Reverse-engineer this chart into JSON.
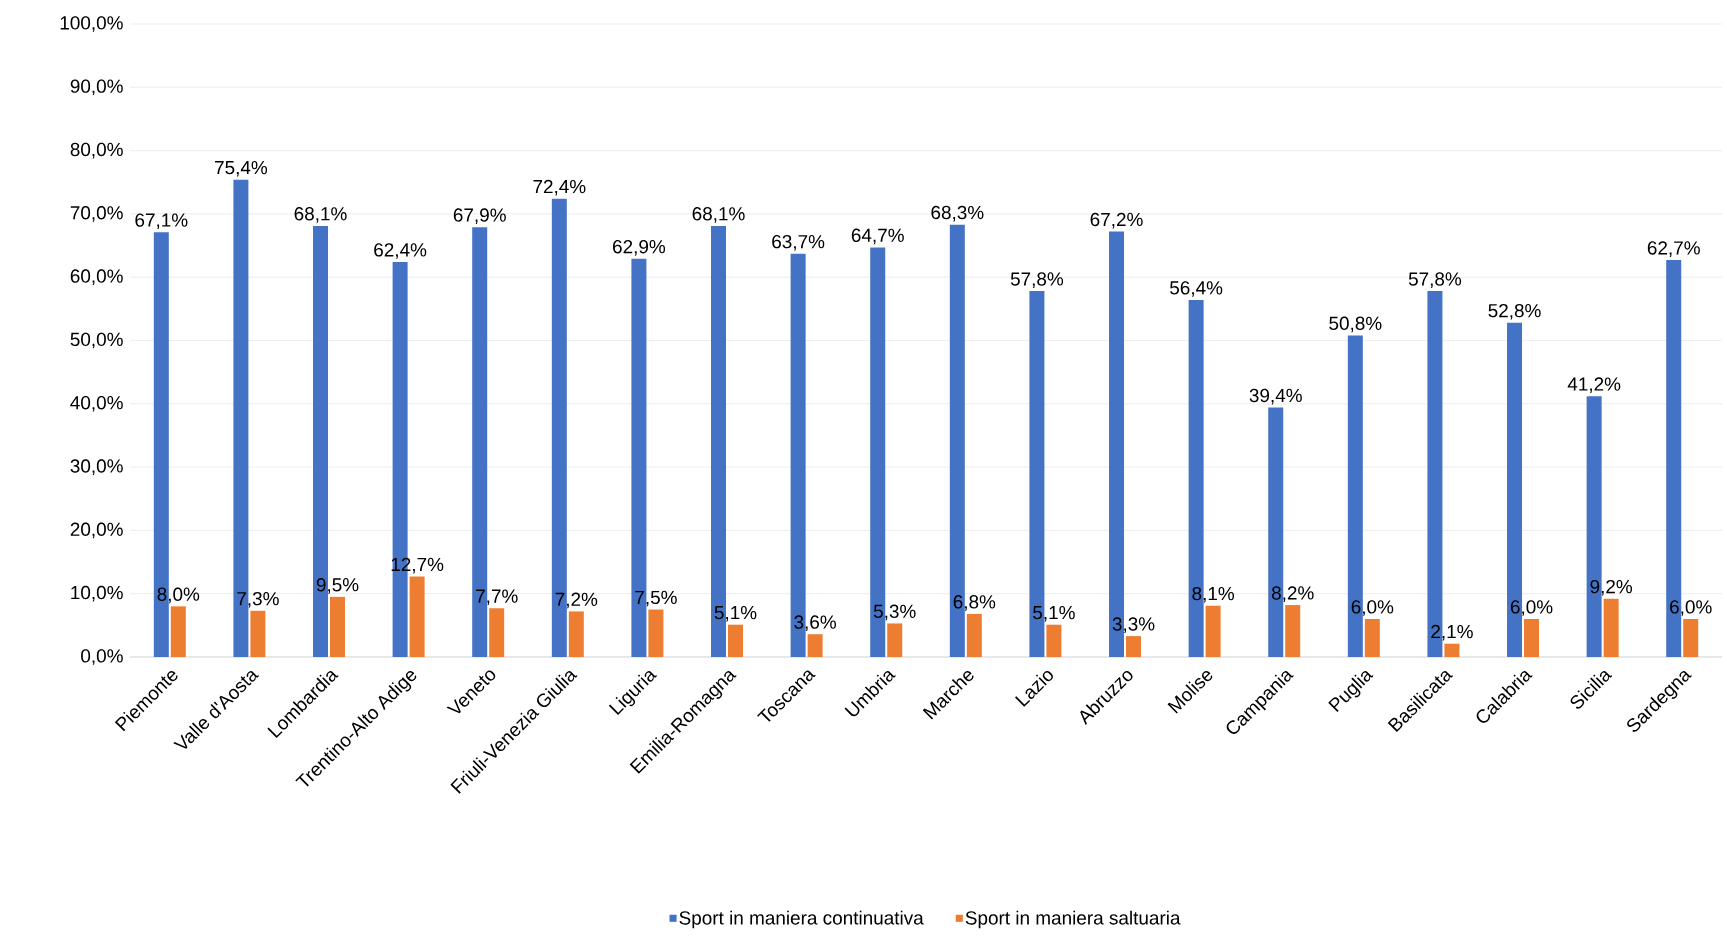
{
  "chart_data": {
    "type": "bar",
    "categories": [
      "Piemonte",
      "Valle d'Aosta",
      "Lombardia",
      "Trentino-Alto Adige",
      "Veneto",
      "Friuli-Venezia Giulia",
      "Liguria",
      "Emilia-Romagna",
      "Toscana",
      "Umbria",
      "Marche",
      "Lazio",
      "Abruzzo",
      "Molise",
      "Campania",
      "Puglia",
      "Basilicata",
      "Calabria",
      "Sicilia",
      "Sardegna"
    ],
    "series": [
      {
        "name": "Sport in maniera continuativa",
        "color": "#4472c4",
        "values": [
          67.1,
          75.4,
          68.1,
          62.4,
          67.9,
          72.4,
          62.9,
          68.1,
          63.7,
          64.7,
          68.3,
          57.8,
          67.2,
          56.4,
          39.4,
          50.8,
          57.8,
          52.8,
          41.2,
          62.7
        ],
        "value_labels": [
          "67,1%",
          "75,4%",
          "68,1%",
          "62,4%",
          "67,9%",
          "72,4%",
          "62,9%",
          "68,1%",
          "63,7%",
          "64,7%",
          "68,3%",
          "57,8%",
          "67,2%",
          "56,4%",
          "39,4%",
          "50,8%",
          "57,8%",
          "52,8%",
          "41,2%",
          "62,7%"
        ]
      },
      {
        "name": "Sport in maniera saltuaria",
        "color": "#ed7d31",
        "values": [
          8.0,
          7.3,
          9.5,
          12.7,
          7.7,
          7.2,
          7.5,
          5.1,
          3.6,
          5.3,
          6.8,
          5.1,
          3.3,
          8.1,
          8.2,
          6.0,
          2.1,
          6.0,
          9.2,
          6.0
        ],
        "value_labels": [
          "8,0%",
          "7,3%",
          "9,5%",
          "12,7%",
          "7,7%",
          "7,2%",
          "7,5%",
          "5,1%",
          "3,6%",
          "5,3%",
          "6,8%",
          "5,1%",
          "3,3%",
          "8,1%",
          "8,2%",
          "6,0%",
          "2,1%",
          "6,0%",
          "9,2%",
          "6,0%"
        ]
      }
    ],
    "ylim": [
      0,
      100
    ],
    "yticks": [
      {
        "value": 0,
        "label": "0,0%"
      },
      {
        "value": 10,
        "label": "10,0%"
      },
      {
        "value": 20,
        "label": "20,0%"
      },
      {
        "value": 30,
        "label": "30,0%"
      },
      {
        "value": 40,
        "label": "40,0%"
      },
      {
        "value": 50,
        "label": "50,0%"
      },
      {
        "value": 60,
        "label": "60,0%"
      },
      {
        "value": 70,
        "label": "70,0%"
      },
      {
        "value": 80,
        "label": "80,0%"
      },
      {
        "value": 90,
        "label": "90,0%"
      },
      {
        "value": 100,
        "label": "100,0%"
      }
    ],
    "grid": "y",
    "legend": "bottom"
  }
}
